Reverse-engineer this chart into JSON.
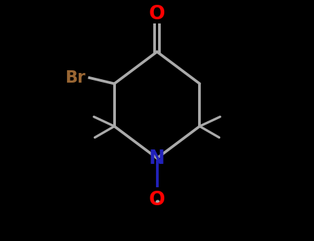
{
  "background_color": "#000000",
  "bond_color": "#aaaaaa",
  "atom_colors": {
    "O_ketone": "#ff0000",
    "O_nitroxide": "#ff0000",
    "N": "#2222bb",
    "Br": "#996633"
  },
  "figsize": [
    4.55,
    3.5
  ],
  "dpi": 100,
  "bond_lw": 2.8,
  "methyl_lw": 2.5,
  "font_O": 20,
  "font_N": 20,
  "font_Br": 17
}
